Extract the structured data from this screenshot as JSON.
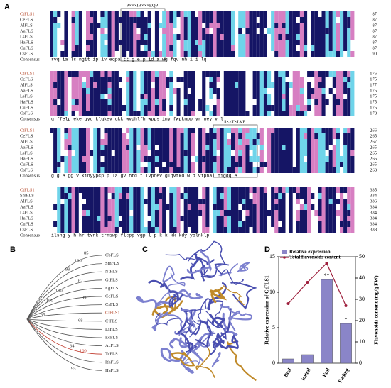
{
  "panel_a": {
    "label": "A",
    "blocks": [
      {
        "motif": "P×××IR×××EQP",
        "rows": [
          {
            "name": "CtFLS1",
            "end": 87
          },
          {
            "name": "CeFLS",
            "end": 87
          },
          {
            "name": "AlFLS",
            "end": 87
          },
          {
            "name": "AaFLS",
            "end": 87
          },
          {
            "name": "LsFLS",
            "end": 87
          },
          {
            "name": "HaFLS",
            "end": 87
          },
          {
            "name": "CuFLS",
            "end": 87
          },
          {
            "name": "CsFLS",
            "end": 90
          }
        ],
        "consensus": "rvq ia ls  ngit ip iv  eqpa tt  g  e p id        a  wg fqv nh i  i lq"
      },
      {
        "rows": [
          {
            "name": "CtFLS1",
            "end": 176
          },
          {
            "name": "CeFLS",
            "end": 175
          },
          {
            "name": "AlFLS",
            "end": 177
          },
          {
            "name": "AaFLS",
            "end": 175
          },
          {
            "name": "LsFLS",
            "end": 175
          },
          {
            "name": "HaFLS",
            "end": 175
          },
          {
            "name": "CuFLS",
            "end": 175
          },
          {
            "name": "CsFLS",
            "end": 178
          }
        ],
        "consensus": "g  ffelp eke         gyg klqkev gkk wvdhlfh wpps iny fwpknpp yr ney  v  l"
      },
      {
        "motif": "S××T×LVP",
        "rows": [
          {
            "name": "CtFLS1",
            "end": 266
          },
          {
            "name": "CeFLS",
            "end": 265
          },
          {
            "name": "AlFLS",
            "end": 267
          },
          {
            "name": "AaFLS",
            "end": 265
          },
          {
            "name": "LsFLS",
            "end": 265
          },
          {
            "name": "HaFLS",
            "end": 265
          },
          {
            "name": "CuFLS",
            "end": 265
          },
          {
            "name": "CsFLS",
            "end": 268
          }
        ],
        "consensus": "g g e         gg   v  kinyypcp p lalgv  htd  t lvpnev glqvfkd  w d  vipnal  higdq e"
      },
      {
        "rows": [
          {
            "name": "CtFLS1",
            "end": 335
          },
          {
            "name": "SmFLS",
            "end": 334
          },
          {
            "name": "AlFLS",
            "end": 336
          },
          {
            "name": "AaFLS",
            "end": 334
          },
          {
            "name": "LsFLS",
            "end": 334
          },
          {
            "name": "HaFLS",
            "end": 334
          },
          {
            "name": "CuFLS",
            "end": 334
          },
          {
            "name": "CsFLS",
            "end": 338
          }
        ],
        "consensus": "ilsng y h hr tvnk  trmswp  flepp    vgp l        p k k kk kdy yclnklp"
      }
    ],
    "consensus_label": "Consensus"
  },
  "panel_b": {
    "label": "B",
    "leaves": [
      "CbFLS",
      "SmFLS",
      "NtFLS",
      "GtFLS",
      "EgFLS",
      "CcFLS",
      "CsFLS",
      "CtFLS1",
      "CjFLS",
      "LsFLS",
      "EcFLS",
      "AcFLS",
      "TcFLS",
      "RhFLS",
      "HaFLS"
    ],
    "bootstrap": [
      "85",
      "100",
      "99",
      "62",
      "100",
      "99",
      "100",
      "35",
      "68",
      "34",
      "100",
      "95"
    ]
  },
  "panel_c": {
    "label": "C"
  },
  "panel_d": {
    "label": "D"
  },
  "chart_data": {
    "type": "bar",
    "categories": [
      "Bud",
      "initial",
      "Full",
      "Fading"
    ],
    "ylabel": "Relative expression of CtFLS1",
    "y2label": "Flavonoids content (mg/g FW)",
    "ylim": [
      0,
      15
    ],
    "yticks": [
      0,
      5,
      10,
      15
    ],
    "y2lim": [
      0,
      50
    ],
    "y2ticks": [
      0,
      10,
      20,
      30,
      40,
      50
    ],
    "series": [
      {
        "name": "Relative expression",
        "color": "#8a85c8",
        "values": [
          0.6,
          1.2,
          11.8,
          5.6
        ]
      },
      {
        "name": "Total flavonoids content",
        "color": "#9e1f3c",
        "values": [
          28,
          38,
          47,
          27
        ],
        "axis": "y2"
      }
    ],
    "annotations": [
      {
        "index": 2,
        "text": "**"
      },
      {
        "index": 3,
        "text": "*"
      }
    ],
    "legend": "upper-left"
  }
}
